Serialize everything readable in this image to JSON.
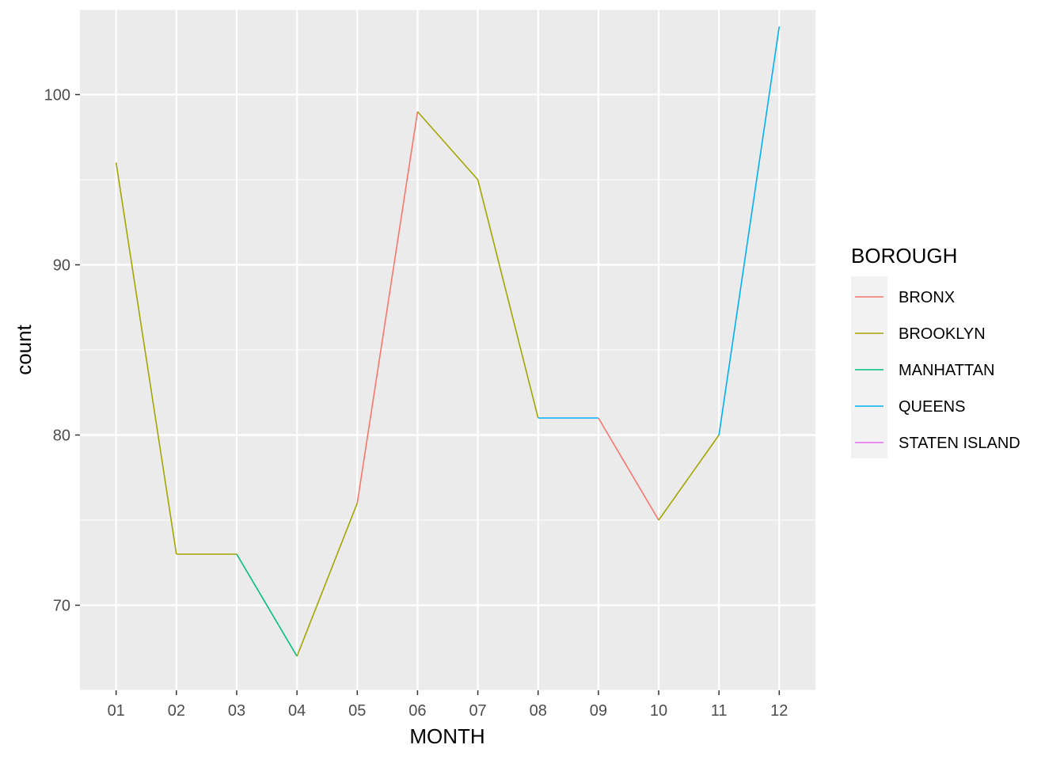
{
  "chart_data": {
    "type": "line",
    "xlabel": "MONTH",
    "ylabel": "count",
    "categories": [
      "01",
      "02",
      "03",
      "04",
      "05",
      "06",
      "07",
      "08",
      "09",
      "10",
      "11",
      "12"
    ],
    "ylim": [
      65,
      105
    ],
    "y_ticks": [
      70,
      80,
      90,
      100
    ],
    "grid": true,
    "legend": {
      "title": "BOROUGH",
      "placement": "right",
      "entries": [
        {
          "label": "BRONX",
          "color": "#F8766D"
        },
        {
          "label": "BROOKLYN",
          "color": "#A3A500"
        },
        {
          "label": "MANHATTAN",
          "color": "#00BF7D"
        },
        {
          "label": "QUEENS",
          "color": "#00B0F6"
        },
        {
          "label": "STATEN ISLAND",
          "color": "#E76BF3"
        }
      ]
    },
    "points": [
      {
        "x": "01",
        "y": 96,
        "borough": "BROOKLYN"
      },
      {
        "x": "02",
        "y": 73,
        "borough": "BROOKLYN"
      },
      {
        "x": "03",
        "y": 73,
        "borough": "MANHATTAN"
      },
      {
        "x": "04",
        "y": 67,
        "borough": "BROOKLYN"
      },
      {
        "x": "05",
        "y": 76,
        "borough": "BRONX"
      },
      {
        "x": "06",
        "y": 99,
        "borough": "BROOKLYN"
      },
      {
        "x": "07",
        "y": 95,
        "borough": "BROOKLYN"
      },
      {
        "x": "08",
        "y": 81,
        "borough": "QUEENS"
      },
      {
        "x": "09",
        "y": 81,
        "borough": "BRONX"
      },
      {
        "x": "10",
        "y": 75,
        "borough": "BROOKLYN"
      },
      {
        "x": "11",
        "y": 80,
        "borough": "QUEENS"
      },
      {
        "x": "12",
        "y": 104,
        "borough": "QUEENS"
      }
    ]
  }
}
